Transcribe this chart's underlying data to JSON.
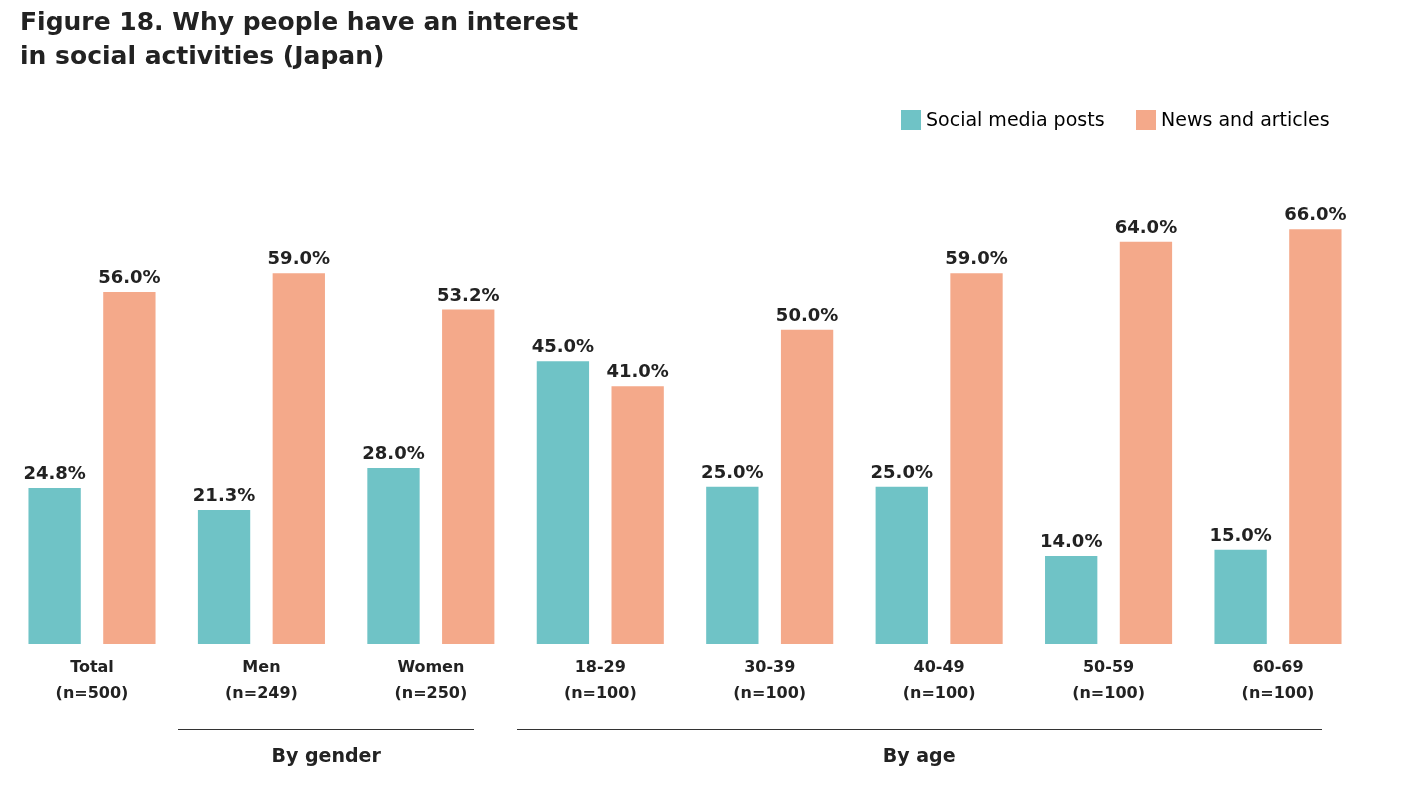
{
  "chart_data": {
    "type": "bar",
    "title": "Figure 18. Why people have an interest\nin social activities (Japan)",
    "categories": [
      "Total\n(n=500)",
      "Men\n(n=249)",
      "Women\n(n=250)",
      "18-29\n(n=100)",
      "30-39\n(n=100)",
      "40-49\n(n=100)",
      "50-59\n(n=100)",
      "60-69\n(n=100)"
    ],
    "series": [
      {
        "name": "Social media posts",
        "color": "#6fc3c6",
        "values": [
          24.8,
          21.3,
          28.0,
          45.0,
          25.0,
          25.0,
          14.0,
          15.0
        ],
        "value_labels": [
          "24.8%",
          "21.3%",
          "28.0%",
          "45.0%",
          "25.0%",
          "25.0%",
          "14.0%",
          "15.0%"
        ]
      },
      {
        "name": "News and articles",
        "color": "#f4a98a",
        "values": [
          56.0,
          59.0,
          53.2,
          41.0,
          50.0,
          59.0,
          64.0,
          66.0
        ],
        "value_labels": [
          "56.0%",
          "59.0%",
          "53.2%",
          "41.0%",
          "50.0%",
          "59.0%",
          "64.0%",
          "66.0%"
        ]
      }
    ],
    "legend": "top right",
    "grid": false,
    "annotations": [
      "By gender",
      "By age"
    ]
  }
}
